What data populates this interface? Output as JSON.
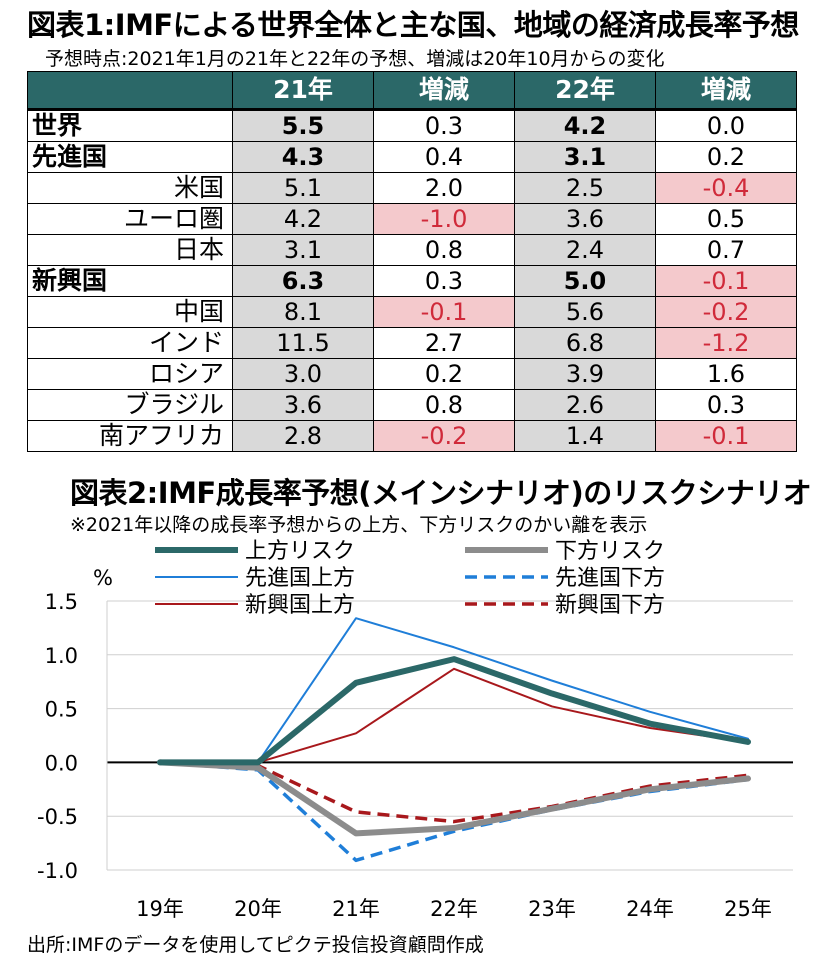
{
  "table": {
    "title": "図表1:IMFによる世界全体と主な国、地域の経済成長率予想",
    "subtitle": "予想時点:2021年1月の21年と22年の予想、増減は20年10月からの変化",
    "headers": [
      "",
      "21年",
      "増減",
      "22年",
      "増減"
    ],
    "rows": [
      {
        "name": "世界",
        "y21": "5.5",
        "d21": "0.3",
        "y22": "4.2",
        "d22": "0.0"
      },
      {
        "name": "先進国",
        "y21": "4.3",
        "d21": "0.4",
        "y22": "3.1",
        "d22": "0.2"
      },
      {
        "name": "米国",
        "y21": "5.1",
        "d21": "2.0",
        "y22": "2.5",
        "d22": "-0.4"
      },
      {
        "name": "ユーロ圏",
        "y21": "4.2",
        "d21": "-1.0",
        "y22": "3.6",
        "d22": "0.5"
      },
      {
        "name": "日本",
        "y21": "3.1",
        "d21": "0.8",
        "y22": "2.4",
        "d22": "0.7"
      },
      {
        "name": "新興国",
        "y21": "6.3",
        "d21": "0.3",
        "y22": "5.0",
        "d22": "-0.1"
      },
      {
        "name": "中国",
        "y21": "8.1",
        "d21": "-0.1",
        "y22": "5.6",
        "d22": "-0.2"
      },
      {
        "name": "インド",
        "y21": "11.5",
        "d21": "2.7",
        "y22": "6.8",
        "d22": "-1.2"
      },
      {
        "name": "ロシア",
        "y21": "3.0",
        "d21": "0.2",
        "y22": "3.9",
        "d22": "1.6"
      },
      {
        "name": "ブラジル",
        "y21": "3.6",
        "d21": "0.8",
        "y22": "2.6",
        "d22": "0.3"
      },
      {
        "name": "南アフリカ",
        "y21": "2.8",
        "d21": "-0.2",
        "y22": "1.4",
        "d22": "-0.1"
      }
    ],
    "colors": {
      "header": "#2b6868",
      "value_cell": "#d9d9d9",
      "negative_bg": "#f4c9cc",
      "negative_text": "#d02a3a"
    }
  },
  "chart_data": {
    "type": "line",
    "title": "図表2:IMF成長率予想(メインシナリオ)のリスクシナリオ",
    "subtitle": "※2021年以降の成長率予想からの上方、下方リスクのかい離を表示",
    "ylabel": "%",
    "x": [
      "19年",
      "20年",
      "21年",
      "22年",
      "23年",
      "24年",
      "25年"
    ],
    "ylim": [
      -1.0,
      1.5
    ],
    "yticks": [
      "1.5",
      "1.0",
      "0.5",
      "0.0",
      "-0.5",
      "-1.0"
    ],
    "gridlines": true,
    "legend_position": "top",
    "series": [
      {
        "name": "上方リスク",
        "color": "#2b6868",
        "width": 6,
        "dash": "",
        "values": [
          0.0,
          0.0,
          0.74,
          0.96,
          0.64,
          0.36,
          0.19
        ]
      },
      {
        "name": "下方リスク",
        "color": "#8c8c8c",
        "width": 6,
        "dash": "",
        "values": [
          0.0,
          -0.05,
          -0.66,
          -0.61,
          -0.43,
          -0.25,
          -0.15
        ]
      },
      {
        "name": "先進国上方",
        "color": "#1f7ed8",
        "width": 2,
        "dash": "",
        "values": [
          0.0,
          0.0,
          1.34,
          1.07,
          0.76,
          0.47,
          0.22
        ]
      },
      {
        "name": "先進国下方",
        "color": "#1f7ed8",
        "width": 3.5,
        "dash": "12,7",
        "values": [
          0.0,
          -0.07,
          -0.91,
          -0.64,
          -0.44,
          -0.27,
          -0.16
        ]
      },
      {
        "name": "新興国上方",
        "color": "#a8181c",
        "width": 2,
        "dash": "",
        "values": [
          0.0,
          0.0,
          0.27,
          0.87,
          0.52,
          0.32,
          0.19
        ]
      },
      {
        "name": "新興国下方",
        "color": "#a8181c",
        "width": 3.5,
        "dash": "12,7",
        "values": [
          0.0,
          -0.03,
          -0.46,
          -0.55,
          -0.41,
          -0.22,
          -0.12
        ]
      }
    ]
  },
  "source": "出所:IMFのデータを使用してピクテ投信投資顧問作成"
}
